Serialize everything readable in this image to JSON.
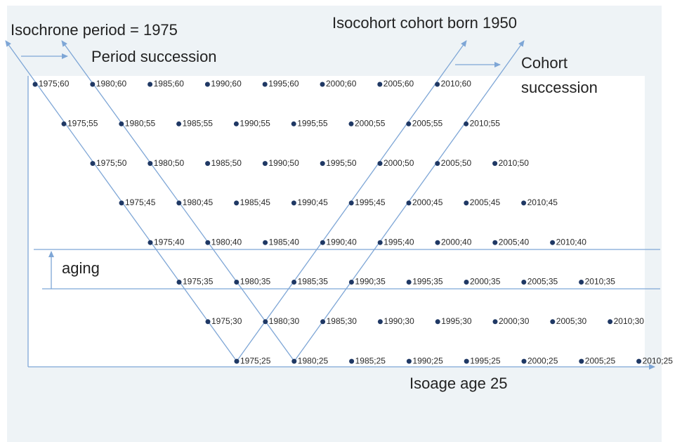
{
  "labels": {
    "isochrone": "Isochrone period = 1975",
    "period_succession": "Period succession",
    "isocohort": "Isocohort cohort born 1950",
    "cohort_succession_1": "Cohort",
    "cohort_succession_2": "succession",
    "aging": "aging",
    "isoage": "Isoage age 25"
  },
  "grid": {
    "rows": [
      [
        "1975;60",
        "1980;60",
        "1985;60",
        "1990;60",
        "1995;60",
        "2000;60",
        "2005;60",
        "2010;60"
      ],
      [
        "1975;55",
        "1980;55",
        "1985;55",
        "1990;55",
        "1995;55",
        "2000;55",
        "2005;55",
        "2010;55"
      ],
      [
        "1975;50",
        "1980;50",
        "1985;50",
        "1990;50",
        "1995;50",
        "2000;50",
        "2005;50",
        "2010;50"
      ],
      [
        "1975;45",
        "1980;45",
        "1985;45",
        "1990;45",
        "1995;45",
        "2000;45",
        "2005;45",
        "2010;45"
      ],
      [
        "1975;40",
        "1980;40",
        "1985;40",
        "1990;40",
        "1995;40",
        "2000;40",
        "2005;40",
        "2010;40"
      ],
      [
        "1975;35",
        "1980;35",
        "1985;35",
        "1990;35",
        "1995;35",
        "2000;35",
        "2005;35",
        "2010;35"
      ],
      [
        "1975;30",
        "1980;30",
        "1985;30",
        "1990;30",
        "1995;30",
        "2000;30",
        "2005;30",
        "2010;30"
      ],
      [
        "1975;25",
        "1980;25",
        "1985;25",
        "1990;25",
        "1995;25",
        "2000;25",
        "2005;25",
        "2010;25"
      ]
    ]
  }
}
